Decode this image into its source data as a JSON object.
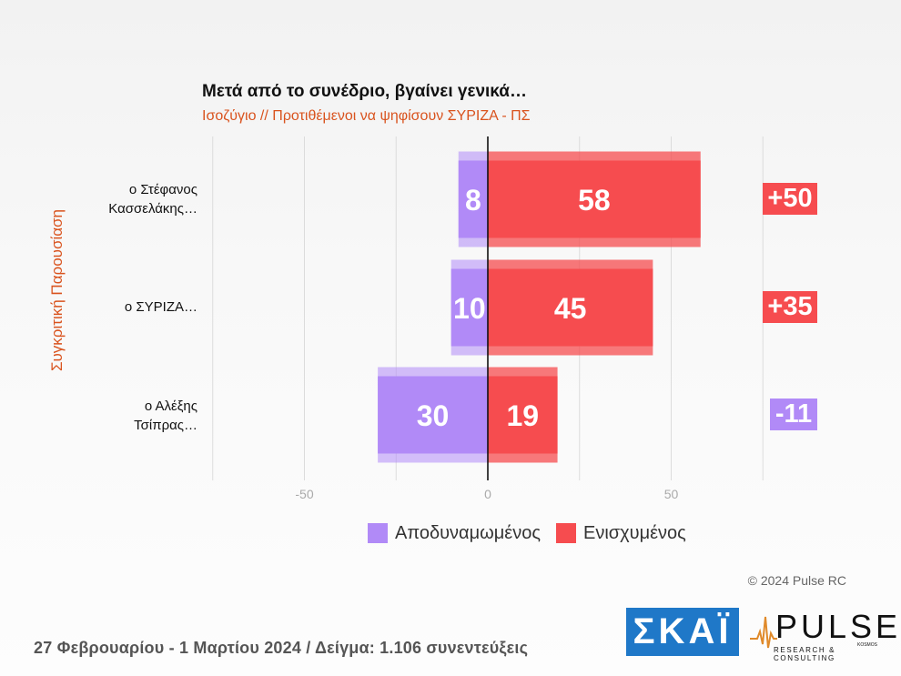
{
  "title": "Μετά από το συνέδριο, βγαίνει γενικά…",
  "subtitle": "Ισοζύγιο // Προτιθέμενοι να ψηφίσουν ΣΥΡΙΖΑ - ΠΣ",
  "side_label": "Συγκριτική Παρουσίαση",
  "categories": [
    {
      "line1": "ο Στέφανος",
      "line2": "Κασσελάκης…"
    },
    {
      "line1": "ο ΣΥΡΙΖΑ…",
      "line2": ""
    },
    {
      "line1": "ο Αλέξης",
      "line2": "Τσίπρας…"
    }
  ],
  "differences": [
    "+50",
    "+35",
    "-11"
  ],
  "legend": {
    "weakened": "Αποδυναμωμένος",
    "strengthened": "Ενισχυμένος"
  },
  "copyright": "© 2024 Pulse RC",
  "footer": "27 Φεβρουαρίου - 1 Μαρτίου 2024  /  Δείγμα:  1.106 συνεντεύξεις",
  "logos": {
    "skai": "ΣΚΑΪ",
    "pulse": "PULSE",
    "pulse_sub": "RESEARCH & CONSULTING",
    "pulse_tag": "KOSMOS"
  },
  "colors": {
    "weakened": "#b18af7",
    "strengthened": "#f64c4f",
    "accent": "#d9531e",
    "skai": "#1f78c8"
  },
  "chart_data": {
    "type": "bar",
    "orientation": "horizontal-diverging",
    "categories": [
      "ο Στέφανος Κασσελάκης…",
      "ο ΣΥΡΙΖΑ…",
      "ο Αλέξης Τσίπρας…"
    ],
    "series": [
      {
        "name": "Αποδυναμωμένος",
        "values": [
          -8,
          -10,
          -30
        ],
        "labels": [
          "8",
          "10",
          "30"
        ]
      },
      {
        "name": "Ενισχυμένος",
        "values": [
          58,
          45,
          19
        ],
        "labels": [
          "58",
          "45",
          "19"
        ]
      }
    ],
    "xlim": [
      -75,
      75
    ],
    "xticks": [
      -50,
      0,
      50
    ],
    "xtick_labels": [
      "-50",
      "0",
      "50"
    ],
    "grid": true,
    "legend_position": "bottom"
  }
}
